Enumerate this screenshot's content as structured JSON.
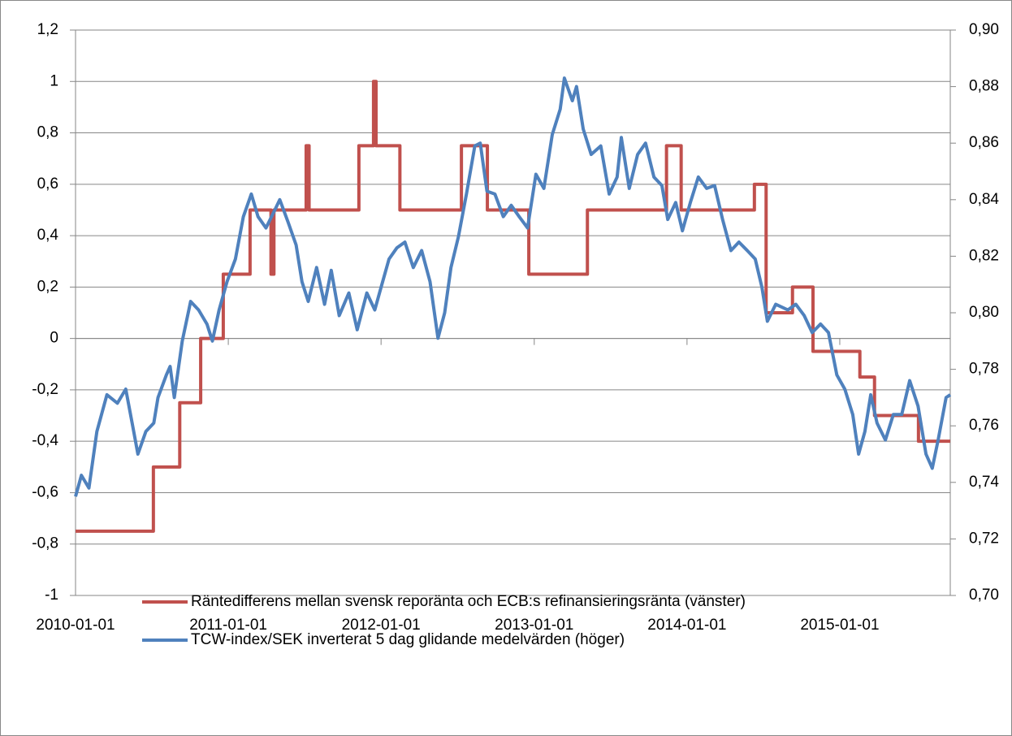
{
  "chart_data": {
    "type": "line",
    "xlim": [
      "2010-01-01",
      "2015-09-22"
    ],
    "xticks": [
      "2010-01-01",
      "2011-01-01",
      "2012-01-01",
      "2013-01-01",
      "2014-01-01",
      "2015-01-01"
    ],
    "ylim": [
      -1,
      1.2
    ],
    "yticks": [
      {
        "value": -1,
        "label": "-1"
      },
      {
        "value": -0.8,
        "label": "-0,8"
      },
      {
        "value": -0.6,
        "label": "-0,6"
      },
      {
        "value": -0.4,
        "label": "-0,4"
      },
      {
        "value": -0.2,
        "label": "-0,2"
      },
      0,
      {
        "value": 0.2,
        "label": "0,2"
      },
      {
        "value": 0.4,
        "label": "0,4"
      },
      {
        "value": 0.6,
        "label": "0,6"
      },
      {
        "value": 0.8,
        "label": "0,8"
      },
      1,
      {
        "value": 1.2,
        "label": "1,2"
      }
    ],
    "y2lim": [
      0.7,
      0.9
    ],
    "y2ticks": [
      {
        "value": 0.7,
        "label": "0,70"
      },
      {
        "value": 0.72,
        "label": "0,72"
      },
      {
        "value": 0.74,
        "label": "0,74"
      },
      {
        "value": 0.76,
        "label": "0,76"
      },
      {
        "value": 0.78,
        "label": "0,78"
      },
      {
        "value": 0.8,
        "label": "0,80"
      },
      {
        "value": 0.82,
        "label": "0,82"
      },
      {
        "value": 0.84,
        "label": "0,84"
      },
      {
        "value": 0.86,
        "label": "0,86"
      },
      {
        "value": 0.88,
        "label": "0,88"
      },
      {
        "value": 0.9,
        "label": "0,90"
      }
    ],
    "grid": true,
    "legend": "bottom",
    "series": [
      {
        "name": "Räntedifferens mellan svensk reporänta och ECB:s refinansieringsränta (vänster)",
        "color": "#c0504d",
        "axis": "y",
        "x": [
          "2010-01-01",
          "2010-07-06",
          "2010-07-06",
          "2010-09-07",
          "2010-09-07",
          "2010-10-27",
          "2010-10-27",
          "2010-12-20",
          "2010-12-20",
          "2011-02-22",
          "2011-02-22",
          "2011-04-13",
          "2011-04-13",
          "2011-04-20",
          "2011-04-20",
          "2011-07-06",
          "2011-07-06",
          "2011-07-13",
          "2011-07-13",
          "2011-11-09",
          "2011-11-09",
          "2011-12-14",
          "2011-12-14",
          "2011-12-20",
          "2011-12-20",
          "2012-02-15",
          "2012-02-15",
          "2012-07-11",
          "2012-07-11",
          "2012-09-11",
          "2012-09-11",
          "2012-12-19",
          "2012-12-19",
          "2013-05-08",
          "2013-05-08",
          "2013-11-13",
          "2013-11-13",
          "2013-12-18",
          "2013-12-18",
          "2014-06-11",
          "2014-06-11",
          "2014-07-09",
          "2014-07-09",
          "2014-09-10",
          "2014-09-10",
          "2014-10-29",
          "2014-10-29",
          "2015-02-18",
          "2015-02-18",
          "2015-03-25",
          "2015-03-25",
          "2015-07-08",
          "2015-07-08",
          "2015-09-22"
        ],
        "values": [
          -0.75,
          -0.75,
          -0.5,
          -0.5,
          -0.25,
          -0.25,
          0,
          0,
          0.25,
          0.25,
          0.5,
          0.5,
          0.25,
          0.25,
          0.5,
          0.5,
          0.75,
          0.75,
          0.5,
          0.5,
          0.75,
          0.75,
          1,
          1,
          0.75,
          0.75,
          0.5,
          0.5,
          0.75,
          0.75,
          0.5,
          0.5,
          0.25,
          0.25,
          0.5,
          0.5,
          0.75,
          0.75,
          0.5,
          0.5,
          0.6,
          0.6,
          0.1,
          0.1,
          0.2,
          0.2,
          -0.05,
          -0.05,
          -0.15,
          -0.15,
          -0.3,
          -0.3,
          -0.4,
          -0.4
        ]
      },
      {
        "name": "TCW-index/SEK inverterat 5 dag glidande medelvärden (höger)",
        "color": "#4f81bd",
        "axis": "y2",
        "x": [
          "2010-01-01",
          "2010-01-15",
          "2010-02-02",
          "2010-02-21",
          "2010-03-17",
          "2010-04-11",
          "2010-05-01",
          "2010-05-20",
          "2010-05-30",
          "2010-06-18",
          "2010-07-07",
          "2010-07-17",
          "2010-08-06",
          "2010-08-15",
          "2010-08-25",
          "2010-09-13",
          "2010-10-03",
          "2010-10-22",
          "2010-11-11",
          "2010-11-24",
          "2010-12-10",
          "2010-12-29",
          "2011-01-18",
          "2011-02-06",
          "2011-02-25",
          "2011-03-13",
          "2011-04-01",
          "2011-04-21",
          "2011-05-04",
          "2011-05-24",
          "2011-06-12",
          "2011-06-26",
          "2011-07-11",
          "2011-07-31",
          "2011-08-19",
          "2011-09-04",
          "2011-09-23",
          "2011-10-16",
          "2011-11-05",
          "2011-11-28",
          "2011-12-17",
          "2012-01-01",
          "2012-01-20",
          "2012-02-08",
          "2012-02-27",
          "2012-03-18",
          "2012-04-07",
          "2012-04-27",
          "2012-05-16",
          "2012-06-01",
          "2012-06-16",
          "2012-07-04",
          "2012-07-23",
          "2012-08-12",
          "2012-08-25",
          "2012-09-10",
          "2012-09-29",
          "2012-10-19",
          "2012-11-07",
          "2012-11-26",
          "2012-12-16",
          "2013-01-05",
          "2013-01-24",
          "2013-02-13",
          "2013-03-04",
          "2013-03-14",
          "2013-04-02",
          "2013-04-12",
          "2013-04-28",
          "2013-05-17",
          "2013-06-09",
          "2013-06-29",
          "2013-07-18",
          "2013-07-28",
          "2013-08-16",
          "2013-09-05",
          "2013-09-24",
          "2013-10-14",
          "2013-11-02",
          "2013-11-16",
          "2013-12-05",
          "2013-12-21",
          "2014-01-09",
          "2014-01-28",
          "2014-02-17",
          "2014-03-08",
          "2014-03-27",
          "2014-04-16",
          "2014-05-05",
          "2014-05-25",
          "2014-06-13",
          "2014-06-29",
          "2014-07-12",
          "2014-08-01",
          "2014-08-30",
          "2014-09-18",
          "2014-10-08",
          "2014-10-27",
          "2014-11-16",
          "2014-12-05",
          "2014-12-25",
          "2015-01-13",
          "2015-02-01",
          "2015-02-15",
          "2015-03-02",
          "2015-03-16",
          "2015-03-31",
          "2015-04-20",
          "2015-05-09",
          "2015-05-29",
          "2015-06-17",
          "2015-07-07",
          "2015-07-26",
          "2015-08-10",
          "2015-08-24",
          "2015-09-12",
          "2015-09-22"
        ],
        "values": [
          0.735,
          0.7425,
          0.738,
          0.758,
          0.771,
          0.768,
          0.773,
          0.758,
          0.75,
          0.758,
          0.761,
          0.77,
          0.778,
          0.781,
          0.77,
          0.79,
          0.804,
          0.801,
          0.796,
          0.79,
          0.801,
          0.811,
          0.819,
          0.834,
          0.842,
          0.834,
          0.83,
          0.836,
          0.84,
          0.832,
          0.824,
          0.811,
          0.804,
          0.816,
          0.803,
          0.815,
          0.799,
          0.807,
          0.794,
          0.807,
          0.801,
          0.809,
          0.819,
          0.823,
          0.825,
          0.816,
          0.822,
          0.811,
          0.791,
          0.8,
          0.816,
          0.827,
          0.842,
          0.859,
          0.86,
          0.843,
          0.842,
          0.834,
          0.838,
          0.834,
          0.83,
          0.849,
          0.844,
          0.863,
          0.872,
          0.883,
          0.875,
          0.88,
          0.865,
          0.856,
          0.859,
          0.842,
          0.848,
          0.862,
          0.844,
          0.856,
          0.86,
          0.848,
          0.845,
          0.833,
          0.839,
          0.829,
          0.839,
          0.848,
          0.844,
          0.845,
          0.833,
          0.822,
          0.825,
          0.822,
          0.819,
          0.809,
          0.797,
          0.803,
          0.801,
          0.803,
          0.799,
          0.793,
          0.796,
          0.793,
          0.778,
          0.773,
          0.764,
          0.75,
          0.758,
          0.771,
          0.761,
          0.755,
          0.764,
          0.764,
          0.776,
          0.767,
          0.75,
          0.745,
          0.755,
          0.77,
          0.771
        ]
      }
    ]
  }
}
